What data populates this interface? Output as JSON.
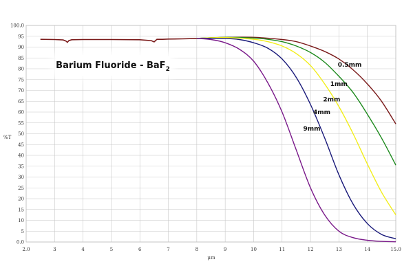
{
  "chart_data": {
    "type": "line",
    "title": "Barium Fluoride - BaF",
    "title_subscript": "2",
    "xlabel": "μm",
    "ylabel": "%T",
    "xlim": [
      2.0,
      15.0
    ],
    "ylim": [
      0.0,
      100.0
    ],
    "grid": true,
    "x_ticks": [
      "2.0",
      "3",
      "4",
      "5",
      "6",
      "7",
      "8",
      "9",
      "10",
      "11",
      "12",
      "13",
      "14",
      "15.0"
    ],
    "y_ticks": [
      "0.0",
      "5",
      "10",
      "15",
      "20",
      "25",
      "30",
      "35",
      "40",
      "45",
      "50",
      "55",
      "60",
      "65",
      "70",
      "75",
      "80",
      "85",
      "90",
      "95",
      "100.0"
    ],
    "baseline": {
      "color": "#7a1a1a",
      "x": [
        2.5,
        3.0,
        3.3,
        3.4,
        3.45,
        3.5,
        3.6,
        4.0,
        5.0,
        6.0,
        6.4,
        6.5,
        6.55,
        6.6,
        6.8,
        7.0,
        7.5,
        8.0
      ],
      "y": [
        93.6,
        93.5,
        93.3,
        92.8,
        92.2,
        93.0,
        93.4,
        93.5,
        93.5,
        93.4,
        93.0,
        92.4,
        93.0,
        93.6,
        93.6,
        93.7,
        93.8,
        94.0
      ]
    },
    "series": [
      {
        "name": "0.5mm",
        "color": "#7a1a1a",
        "x": [
          8,
          9,
          10,
          11,
          11.5,
          12,
          12.5,
          13,
          13.5,
          14,
          14.5,
          15
        ],
        "y": [
          94,
          94.5,
          94.5,
          93.5,
          92.5,
          90.5,
          88,
          84.5,
          79.5,
          73,
          65,
          54.5
        ]
      },
      {
        "name": "1mm",
        "color": "#1e8a1e",
        "x": [
          8,
          9,
          10,
          10.5,
          11,
          11.5,
          12,
          12.5,
          13,
          13.5,
          14,
          14.5,
          15
        ],
        "y": [
          94,
          94.5,
          94.2,
          93.6,
          92.5,
          90.5,
          87.5,
          83,
          76.5,
          69,
          59,
          48,
          35.5
        ]
      },
      {
        "name": "2mm",
        "color": "#f2ee1a",
        "x": [
          8,
          9,
          10,
          10.5,
          11,
          11.5,
          12,
          12.5,
          13,
          13.5,
          14,
          14.5,
          15
        ],
        "y": [
          94,
          94.4,
          93.6,
          92.5,
          90.5,
          87,
          81.5,
          73,
          62.5,
          50,
          36,
          23,
          12.5
        ]
      },
      {
        "name": "4mm",
        "color": "#1a1a7a",
        "x": [
          8,
          9,
          9.5,
          10,
          10.5,
          11,
          11.5,
          12,
          12.5,
          13,
          13.5,
          14,
          14.5,
          15
        ],
        "y": [
          94,
          94,
          93.5,
          92,
          89.5,
          84.5,
          76,
          63.5,
          48,
          31,
          17.5,
          8.5,
          3.5,
          1.5
        ]
      },
      {
        "name": "9mm",
        "color": "#7a1a8a",
        "x": [
          8,
          8.5,
          9,
          9.5,
          10,
          10.5,
          11,
          11.5,
          12,
          12.5,
          13,
          13.5,
          14,
          14.5,
          15
        ],
        "y": [
          94,
          93.5,
          92,
          89,
          83.5,
          73.5,
          60,
          42.5,
          25,
          12.5,
          5,
          2,
          0.8,
          0.3,
          0.1
        ]
      }
    ]
  }
}
